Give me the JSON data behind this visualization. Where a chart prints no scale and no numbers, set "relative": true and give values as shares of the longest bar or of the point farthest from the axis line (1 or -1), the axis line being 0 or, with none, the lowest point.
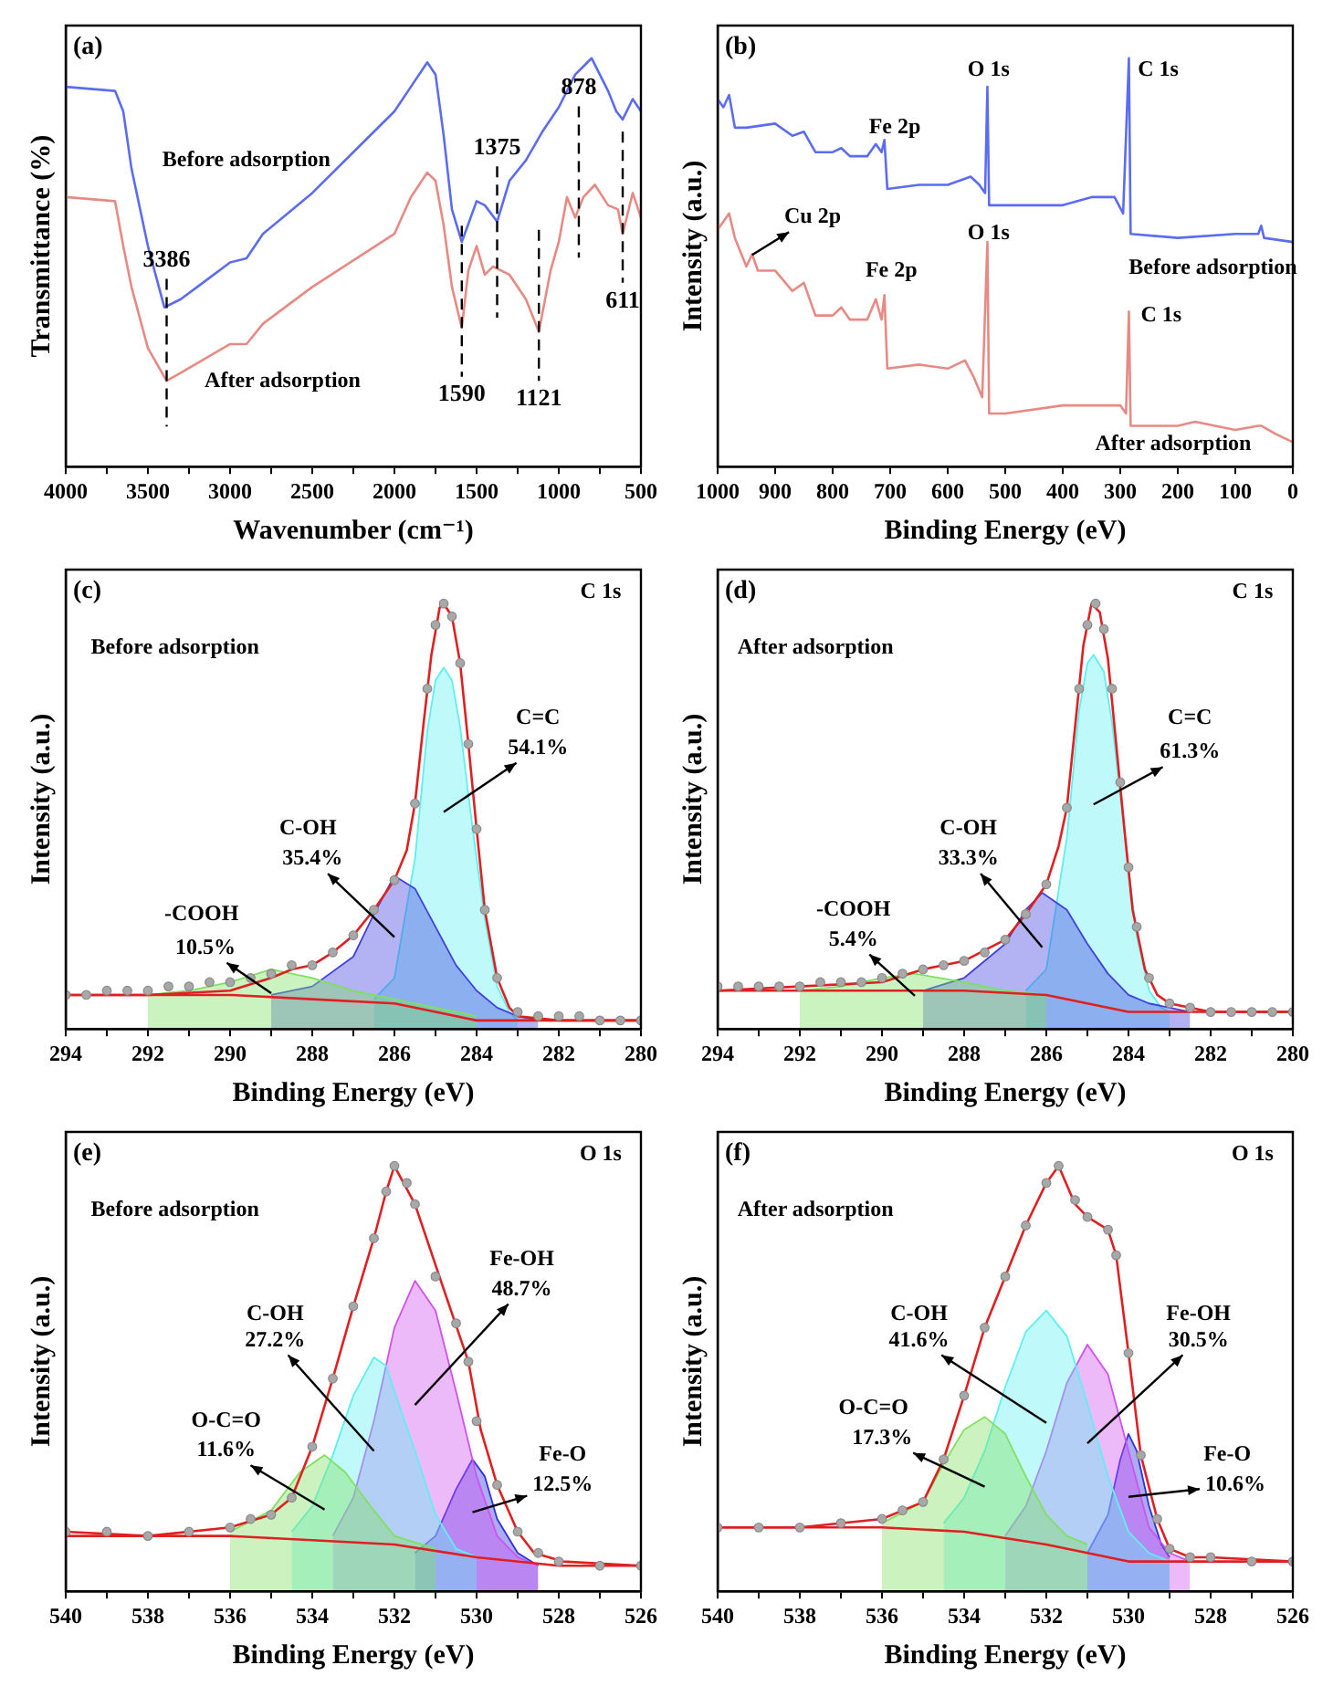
{
  "chart_data": [
    {
      "type": "line",
      "title": "(a)",
      "xlabel": "Wavenumber (cm⁻¹)",
      "ylabel": "Transmittance (%)",
      "relative": true,
      "xlim": [
        4000,
        500
      ],
      "xticks": [
        4000,
        {
          "value": 3750,
          "label": null
        },
        3500,
        {
          "value": 3250,
          "label": null
        },
        3000,
        {
          "value": 2750,
          "label": null
        },
        2500,
        {
          "value": 2250,
          "label": null
        },
        2000,
        {
          "value": 1750,
          "label": null
        },
        1500,
        {
          "value": 1250,
          "label": null
        },
        1000,
        {
          "value": 750,
          "label": null
        },
        500
      ],
      "series": [
        {
          "color": "#5b6cf0",
          "x": [
            4000,
            3700,
            3650,
            3600,
            3500,
            3400,
            3300,
            3200,
            3000,
            2900,
            2800,
            2500,
            2200,
            2000,
            1900,
            1800,
            1750,
            1700,
            1650,
            1590,
            1500,
            1450,
            1375,
            1300,
            1200,
            1100,
            1000,
            900,
            850,
            800,
            700,
            650,
            611,
            550,
            500
          ],
          "values": [
            0.93,
            0.92,
            0.87,
            0.73,
            0.54,
            0.39,
            0.41,
            0.44,
            0.5,
            0.51,
            0.57,
            0.67,
            0.79,
            0.87,
            0.93,
            0.99,
            0.96,
            0.81,
            0.63,
            0.55,
            0.65,
            0.64,
            0.6,
            0.7,
            0.75,
            0.82,
            0.88,
            0.96,
            0.98,
            1.0,
            0.92,
            0.87,
            0.85,
            0.9,
            0.87
          ]
        },
        {
          "color": "#e88a84",
          "x": [
            4000,
            3700,
            3650,
            3600,
            3500,
            3386,
            3300,
            3000,
            2900,
            2800,
            2500,
            2000,
            1900,
            1800,
            1750,
            1700,
            1650,
            1590,
            1550,
            1500,
            1450,
            1400,
            1300,
            1200,
            1121,
            1050,
            1000,
            950,
            900,
            850,
            780,
            700,
            640,
            611,
            550,
            500
          ],
          "values": [
            0.66,
            0.65,
            0.54,
            0.44,
            0.29,
            0.21,
            0.23,
            0.3,
            0.3,
            0.35,
            0.44,
            0.57,
            0.66,
            0.72,
            0.7,
            0.59,
            0.44,
            0.34,
            0.48,
            0.54,
            0.47,
            0.49,
            0.47,
            0.41,
            0.33,
            0.48,
            0.55,
            0.66,
            0.61,
            0.66,
            0.69,
            0.64,
            0.63,
            0.57,
            0.67,
            0.61
          ]
        }
      ],
      "annotations": [
        "Before adsorption",
        "After adsorption"
      ],
      "ref_lines": [
        {
          "axis": "x",
          "value": 3386,
          "label": "3386"
        },
        {
          "axis": "x",
          "value": 1590,
          "label": "1590"
        },
        {
          "axis": "x",
          "value": 1375,
          "label": "1375"
        },
        {
          "axis": "x",
          "value": 1121,
          "label": "1121"
        },
        {
          "axis": "x",
          "value": 878,
          "label": "878"
        },
        {
          "axis": "x",
          "value": 611,
          "label": "611"
        }
      ]
    },
    {
      "type": "line",
      "title": "(b)",
      "xlabel": "Binding Energy (eV)",
      "ylabel": "Intensity (a.u.)",
      "relative": true,
      "xlim": [
        1000,
        0
      ],
      "xticks": [
        1000,
        900,
        800,
        700,
        600,
        500,
        400,
        300,
        200,
        100,
        0
      ],
      "series": [
        {
          "color": "#5b6cf0",
          "x": [
            1000,
            990,
            980,
            970,
            950,
            900,
            870,
            850,
            830,
            800,
            785,
            770,
            740,
            725,
            715,
            710,
            705,
            650,
            600,
            560,
            545,
            535,
            531,
            528,
            500,
            400,
            350,
            310,
            295,
            285,
            282,
            200,
            100,
            60,
            55,
            50,
            0
          ],
          "values": [
            0.9,
            0.88,
            0.91,
            0.83,
            0.83,
            0.84,
            0.81,
            0.82,
            0.77,
            0.77,
            0.78,
            0.76,
            0.76,
            0.79,
            0.77,
            0.8,
            0.68,
            0.69,
            0.69,
            0.71,
            0.69,
            0.67,
            0.93,
            0.64,
            0.64,
            0.64,
            0.66,
            0.66,
            0.62,
            1.0,
            0.57,
            0.56,
            0.57,
            0.57,
            0.59,
            0.56,
            0.55
          ]
        },
        {
          "color": "#e88a84",
          "x": [
            1000,
            980,
            970,
            950,
            940,
            930,
            900,
            870,
            850,
            830,
            800,
            785,
            770,
            740,
            725,
            715,
            710,
            705,
            650,
            600,
            570,
            555,
            540,
            531,
            528,
            500,
            400,
            300,
            290,
            285,
            282,
            200,
            170,
            100,
            60,
            55,
            30,
            0
          ],
          "values": [
            0.58,
            0.62,
            0.56,
            0.49,
            0.52,
            0.48,
            0.48,
            0.43,
            0.45,
            0.37,
            0.37,
            0.39,
            0.36,
            0.36,
            0.41,
            0.36,
            0.42,
            0.24,
            0.25,
            0.24,
            0.26,
            0.22,
            0.17,
            0.55,
            0.13,
            0.13,
            0.15,
            0.15,
            0.13,
            0.38,
            0.1,
            0.1,
            0.11,
            0.09,
            0.1,
            0.1,
            0.08,
            0.06
          ]
        }
      ],
      "annotations": [
        "Fe 2p",
        "O 1s",
        "C 1s",
        "Before adsorption",
        "Cu 2p",
        "Fe 2p",
        "O 1s",
        "C 1s",
        "After adsorption"
      ]
    },
    {
      "type": "line",
      "title": "(c)",
      "xlabel": "Binding Energy (eV)",
      "ylabel": "Intensity (a.u.)",
      "relative": true,
      "xlim": [
        294,
        280
      ],
      "xticks": [
        294,
        {
          "value": 293,
          "label": null
        },
        292,
        {
          "value": 291,
          "label": null
        },
        290,
        {
          "value": 289,
          "label": null
        },
        288,
        {
          "value": 287,
          "label": null
        },
        286,
        {
          "value": 285,
          "label": null
        },
        284,
        {
          "value": 283,
          "label": null
        },
        282,
        {
          "value": 281,
          "label": null
        },
        280
      ],
      "series": [
        {
          "type": "scatter",
          "marker": "circle",
          "color": "#a8a8a8",
          "x": [
            294,
            293.5,
            293,
            292.5,
            292,
            291.5,
            291,
            290.5,
            290,
            289.5,
            289,
            288.5,
            288,
            287.5,
            287,
            286.5,
            286,
            285.5,
            285.2,
            285,
            284.8,
            284.6,
            284.4,
            284.2,
            284,
            283.8,
            283.5,
            283,
            282.5,
            282,
            281.5,
            281,
            280.5,
            280
          ],
          "values": [
            0.08,
            0.08,
            0.09,
            0.09,
            0.09,
            0.1,
            0.1,
            0.11,
            0.11,
            0.12,
            0.13,
            0.15,
            0.15,
            0.18,
            0.22,
            0.28,
            0.35,
            0.53,
            0.8,
            0.95,
            1.0,
            0.97,
            0.86,
            0.67,
            0.47,
            0.28,
            0.12,
            0.04,
            0.03,
            0.03,
            0.03,
            0.02,
            0.02,
            0.02
          ]
        },
        {
          "type": "line",
          "color": "#e02020",
          "x": [
            294,
            292,
            290,
            289,
            288.5,
            288,
            287.5,
            287,
            286.5,
            286,
            285.7,
            285.5,
            285.3,
            285.1,
            284.9,
            284.8,
            284.6,
            284.4,
            284.2,
            284,
            283.8,
            283.5,
            283.2,
            283,
            282,
            280
          ],
          "values": [
            0.08,
            0.08,
            0.09,
            0.12,
            0.14,
            0.15,
            0.18,
            0.22,
            0.28,
            0.35,
            0.42,
            0.53,
            0.71,
            0.88,
            0.99,
            1,
            0.97,
            0.86,
            0.67,
            0.47,
            0.28,
            0.12,
            0.05,
            0.03,
            0.02,
            0.02
          ]
        },
        {
          "type": "line",
          "color": "#e02020",
          "x": [
            294,
            290,
            288,
            286,
            285,
            284,
            283,
            280
          ],
          "values": [
            0.08,
            0.08,
            0.07,
            0.06,
            0.04,
            0.02,
            0.02,
            0.02
          ]
        },
        {
          "type": "area",
          "color": "#7ee060",
          "x": [
            292,
            291,
            290,
            289,
            288,
            287,
            286,
            285,
            284
          ],
          "values": [
            0.08,
            0.09,
            0.11,
            0.14,
            0.12,
            0.09,
            0.07,
            0.05,
            0.03
          ]
        },
        {
          "type": "area",
          "color": "#4040e0",
          "x": [
            289,
            288,
            287,
            286.5,
            286,
            285.5,
            285,
            284.5,
            284,
            283.5,
            283,
            282.5
          ],
          "values": [
            0.08,
            0.1,
            0.17,
            0.27,
            0.36,
            0.33,
            0.24,
            0.15,
            0.09,
            0.05,
            0.03,
            0.02
          ]
        },
        {
          "type": "area",
          "color": "#5ef0f0",
          "x": [
            286.5,
            286,
            285.5,
            285.2,
            285,
            284.8,
            284.6,
            284.4,
            284.2,
            284,
            283.8,
            283.5,
            283.2,
            283
          ],
          "values": [
            0.07,
            0.12,
            0.4,
            0.7,
            0.82,
            0.85,
            0.82,
            0.71,
            0.55,
            0.4,
            0.26,
            0.1,
            0.04,
            0.02
          ]
        }
      ],
      "annotations": [
        "C 1s",
        "Before adsorption",
        "-COOH",
        "10.5%",
        "C-OH",
        "35.4%",
        "C=C",
        "54.1%"
      ]
    },
    {
      "type": "line",
      "title": "(d)",
      "xlabel": "Binding Energy (eV)",
      "ylabel": "Intensity (a.u.)",
      "relative": true,
      "xlim": [
        294,
        280
      ],
      "xticks": [
        294,
        {
          "value": 293,
          "label": null
        },
        292,
        {
          "value": 291,
          "label": null
        },
        290,
        {
          "value": 289,
          "label": null
        },
        288,
        {
          "value": 287,
          "label": null
        },
        286,
        {
          "value": 285,
          "label": null
        },
        284,
        {
          "value": 283,
          "label": null
        },
        282,
        {
          "value": 281,
          "label": null
        },
        280
      ],
      "series": [
        {
          "type": "scatter",
          "marker": "circle",
          "color": "#a8a8a8",
          "x": [
            294,
            293.5,
            293,
            292.5,
            292,
            291.5,
            291,
            290.5,
            290,
            289.5,
            289,
            288.5,
            288,
            287.5,
            287,
            286.5,
            286,
            285.5,
            285.2,
            285,
            284.8,
            284.6,
            284.4,
            284.2,
            284,
            283.8,
            283.5,
            283,
            282.5,
            282,
            281.5,
            281,
            280.5,
            280
          ],
          "values": [
            0.1,
            0.1,
            0.1,
            0.1,
            0.1,
            0.11,
            0.11,
            0.11,
            0.12,
            0.13,
            0.14,
            0.15,
            0.16,
            0.18,
            0.21,
            0.27,
            0.34,
            0.52,
            0.8,
            0.95,
            1.0,
            0.94,
            0.8,
            0.58,
            0.38,
            0.24,
            0.12,
            0.06,
            0.05,
            0.04,
            0.04,
            0.04,
            0.04,
            0.04
          ]
        },
        {
          "type": "line",
          "color": "#e02020",
          "x": [
            294,
            292,
            290,
            289,
            288,
            287,
            286.5,
            286,
            285.7,
            285.5,
            285.3,
            285.1,
            284.9,
            284.7,
            284.5,
            284.3,
            284.1,
            283.9,
            283.6,
            283.3,
            283,
            282,
            280
          ],
          "values": [
            0.09,
            0.1,
            0.11,
            0.14,
            0.16,
            0.21,
            0.27,
            0.34,
            0.43,
            0.52,
            0.71,
            0.9,
            1,
            0.98,
            0.87,
            0.67,
            0.47,
            0.28,
            0.14,
            0.08,
            0.06,
            0.04,
            0.04
          ]
        },
        {
          "type": "line",
          "color": "#e02020",
          "x": [
            294,
            290,
            288,
            286,
            285,
            284,
            283,
            280
          ],
          "values": [
            0.09,
            0.09,
            0.09,
            0.08,
            0.06,
            0.04,
            0.04,
            0.04
          ]
        },
        {
          "type": "area",
          "color": "#7ee060",
          "x": [
            292,
            291,
            290,
            289.2,
            288,
            287,
            286
          ],
          "values": [
            0.09,
            0.1,
            0.12,
            0.13,
            0.11,
            0.09,
            0.08
          ]
        },
        {
          "type": "area",
          "color": "#4040e0",
          "x": [
            289,
            288,
            287,
            286.5,
            286.1,
            285.5,
            285,
            284.5,
            284,
            283.5,
            283,
            282.5
          ],
          "values": [
            0.09,
            0.12,
            0.2,
            0.28,
            0.32,
            0.28,
            0.2,
            0.13,
            0.08,
            0.06,
            0.05,
            0.04
          ]
        },
        {
          "type": "area",
          "color": "#5ef0f0",
          "x": [
            286.5,
            286,
            285.5,
            285.2,
            285,
            284.85,
            284.6,
            284.4,
            284.2,
            284,
            283.8,
            283.5,
            283.2,
            283
          ],
          "values": [
            0.09,
            0.14,
            0.45,
            0.75,
            0.86,
            0.88,
            0.84,
            0.72,
            0.55,
            0.38,
            0.22,
            0.09,
            0.05,
            0.04
          ]
        }
      ],
      "annotations": [
        "C 1s",
        "After adsorption",
        "-COOH",
        "5.4%",
        "C-OH",
        "33.3%",
        "C=C",
        "61.3%"
      ]
    },
    {
      "type": "line",
      "title": "(e)",
      "xlabel": "Binding Energy (eV)",
      "ylabel": "Intensity (a.u.)",
      "relative": true,
      "xlim": [
        540,
        526
      ],
      "xticks": [
        540,
        {
          "value": 539,
          "label": null
        },
        538,
        {
          "value": 537,
          "label": null
        },
        536,
        {
          "value": 535,
          "label": null
        },
        534,
        {
          "value": 533,
          "label": null
        },
        532,
        {
          "value": 531,
          "label": null
        },
        530,
        {
          "value": 529,
          "label": null
        },
        528,
        {
          "value": 527,
          "label": null
        },
        526
      ],
      "series": [
        {
          "type": "scatter",
          "marker": "circle",
          "color": "#a8a8a8",
          "x": [
            540,
            539,
            538,
            537,
            536,
            535.5,
            535,
            534.5,
            534,
            533.5,
            533,
            532.5,
            532.2,
            532,
            531.7,
            531.5,
            531,
            530.5,
            530.2,
            530,
            529.5,
            529,
            528.5,
            528,
            527,
            526
          ],
          "values": [
            0.14,
            0.14,
            0.13,
            0.14,
            0.15,
            0.17,
            0.18,
            0.22,
            0.34,
            0.5,
            0.67,
            0.83,
            0.94,
            1.0,
            0.96,
            0.91,
            0.74,
            0.63,
            0.54,
            0.4,
            0.25,
            0.14,
            0.09,
            0.07,
            0.06,
            0.06
          ]
        },
        {
          "type": "line",
          "color": "#e02020",
          "x": [
            540,
            538,
            536,
            535,
            534.5,
            534,
            533.5,
            533,
            532.5,
            532.2,
            532,
            531.5,
            530.8,
            530.2,
            529.9,
            529.5,
            529,
            528.6,
            527.9,
            526
          ],
          "values": [
            0.14,
            0.13,
            0.15,
            0.18,
            0.22,
            0.34,
            0.5,
            0.67,
            0.83,
            0.94,
            1,
            0.91,
            0.71,
            0.54,
            0.38,
            0.25,
            0.14,
            0.09,
            0.07,
            0.06
          ]
        },
        {
          "type": "line",
          "color": "#e02020",
          "x": [
            540,
            536,
            534,
            532,
            530,
            528,
            526
          ],
          "values": [
            0.13,
            0.13,
            0.12,
            0.11,
            0.08,
            0.06,
            0.06
          ]
        },
        {
          "type": "area",
          "color": "#80e060",
          "x": [
            536,
            535,
            534.3,
            533.7,
            533.2,
            532.5,
            532,
            531
          ],
          "values": [
            0.14,
            0.19,
            0.28,
            0.32,
            0.28,
            0.19,
            0.13,
            0.1
          ]
        },
        {
          "type": "area",
          "color": "#5ef0f0",
          "x": [
            534.5,
            534,
            533.5,
            533,
            532.5,
            532.2,
            532,
            531.5,
            531,
            530.5,
            530
          ],
          "values": [
            0.14,
            0.2,
            0.32,
            0.46,
            0.55,
            0.53,
            0.47,
            0.33,
            0.18,
            0.1,
            0.08
          ]
        },
        {
          "type": "area",
          "color": "#d050f0",
          "x": [
            533.5,
            533,
            532.5,
            532,
            531.5,
            531,
            530.5,
            530,
            529.5,
            529,
            528.5
          ],
          "values": [
            0.13,
            0.22,
            0.4,
            0.62,
            0.73,
            0.66,
            0.47,
            0.27,
            0.13,
            0.08,
            0.06
          ]
        },
        {
          "type": "area",
          "color": "#3030e0",
          "x": [
            531.5,
            531,
            530.5,
            530.1,
            529.8,
            529.5,
            529,
            528.5
          ],
          "values": [
            0.09,
            0.13,
            0.24,
            0.31,
            0.27,
            0.17,
            0.09,
            0.06
          ]
        }
      ],
      "annotations": [
        "O 1s",
        "Before adsorption",
        "O-C=O",
        "11.6%",
        "C-OH",
        "27.2%",
        "Fe-OH",
        "48.7%",
        "Fe-O",
        "12.5%"
      ]
    },
    {
      "type": "line",
      "title": "(f)",
      "xlabel": "Binding Energy (eV)",
      "ylabel": "Intensity (a.u.)",
      "relative": true,
      "xlim": [
        540,
        526
      ],
      "xticks": [
        540,
        {
          "value": 539,
          "label": null
        },
        538,
        {
          "value": 537,
          "label": null
        },
        536,
        {
          "value": 535,
          "label": null
        },
        534,
        {
          "value": 533,
          "label": null
        },
        532,
        {
          "value": 531,
          "label": null
        },
        530,
        {
          "value": 529,
          "label": null
        },
        528,
        {
          "value": 527,
          "label": null
        },
        526
      ],
      "series": [
        {
          "type": "scatter",
          "marker": "circle",
          "color": "#a8a8a8",
          "x": [
            540,
            539,
            538,
            537,
            536,
            535.5,
            535,
            534.5,
            534,
            533.5,
            533,
            532.5,
            532,
            531.7,
            531.3,
            531,
            530.5,
            530.3,
            530,
            529.7,
            529.3,
            529,
            528.5,
            528,
            527,
            526
          ],
          "values": [
            0.15,
            0.15,
            0.15,
            0.16,
            0.17,
            0.19,
            0.21,
            0.31,
            0.46,
            0.62,
            0.74,
            0.86,
            0.96,
            1.0,
            0.92,
            0.88,
            0.85,
            0.79,
            0.56,
            0.32,
            0.17,
            0.1,
            0.08,
            0.08,
            0.07,
            0.07
          ]
        },
        {
          "type": "line",
          "color": "#e02020",
          "x": [
            540,
            538,
            536,
            535,
            534.5,
            534,
            533.5,
            533,
            532.5,
            532,
            531.7,
            531.3,
            531,
            530.5,
            530.3,
            530,
            529.7,
            529.3,
            529,
            528.5,
            528,
            526
          ],
          "values": [
            0.15,
            0.15,
            0.17,
            0.21,
            0.31,
            0.46,
            0.62,
            0.74,
            0.86,
            0.96,
            1,
            0.91,
            0.88,
            0.85,
            0.79,
            0.56,
            0.32,
            0.17,
            0.1,
            0.08,
            0.08,
            0.07
          ]
        },
        {
          "type": "line",
          "color": "#e02020",
          "x": [
            540,
            536,
            534,
            532,
            530,
            528,
            526
          ],
          "values": [
            0.15,
            0.15,
            0.14,
            0.11,
            0.07,
            0.07,
            0.07
          ]
        },
        {
          "type": "area",
          "color": "#80e060",
          "x": [
            536,
            535,
            534.5,
            534,
            533.5,
            533,
            532.5,
            532,
            531.5,
            531
          ],
          "values": [
            0.16,
            0.21,
            0.3,
            0.38,
            0.41,
            0.37,
            0.27,
            0.18,
            0.13,
            0.11
          ]
        },
        {
          "type": "area",
          "color": "#5ef0f0",
          "x": [
            534.5,
            534,
            533.5,
            533,
            532.5,
            532,
            531.5,
            531,
            530.5,
            530,
            529.5,
            529
          ],
          "values": [
            0.16,
            0.22,
            0.33,
            0.48,
            0.61,
            0.66,
            0.6,
            0.44,
            0.27,
            0.14,
            0.09,
            0.07
          ]
        },
        {
          "type": "area",
          "color": "#d050f0",
          "x": [
            533,
            532.5,
            532,
            531.5,
            531,
            530.5,
            530,
            529.5,
            529,
            528.5
          ],
          "values": [
            0.13,
            0.2,
            0.33,
            0.49,
            0.58,
            0.51,
            0.33,
            0.15,
            0.09,
            0.07
          ]
        },
        {
          "type": "area",
          "color": "#3030e0",
          "x": [
            531,
            530.5,
            530.2,
            530,
            529.8,
            529.5,
            529.2,
            529
          ],
          "values": [
            0.09,
            0.18,
            0.31,
            0.37,
            0.33,
            0.2,
            0.11,
            0.08
          ]
        }
      ],
      "annotations": [
        "O 1s",
        "After adsorption",
        "O-C=O",
        "17.3%",
        "C-OH",
        "41.6%",
        "Fe-OH",
        "30.5%",
        "Fe-O",
        "10.6%"
      ]
    }
  ]
}
